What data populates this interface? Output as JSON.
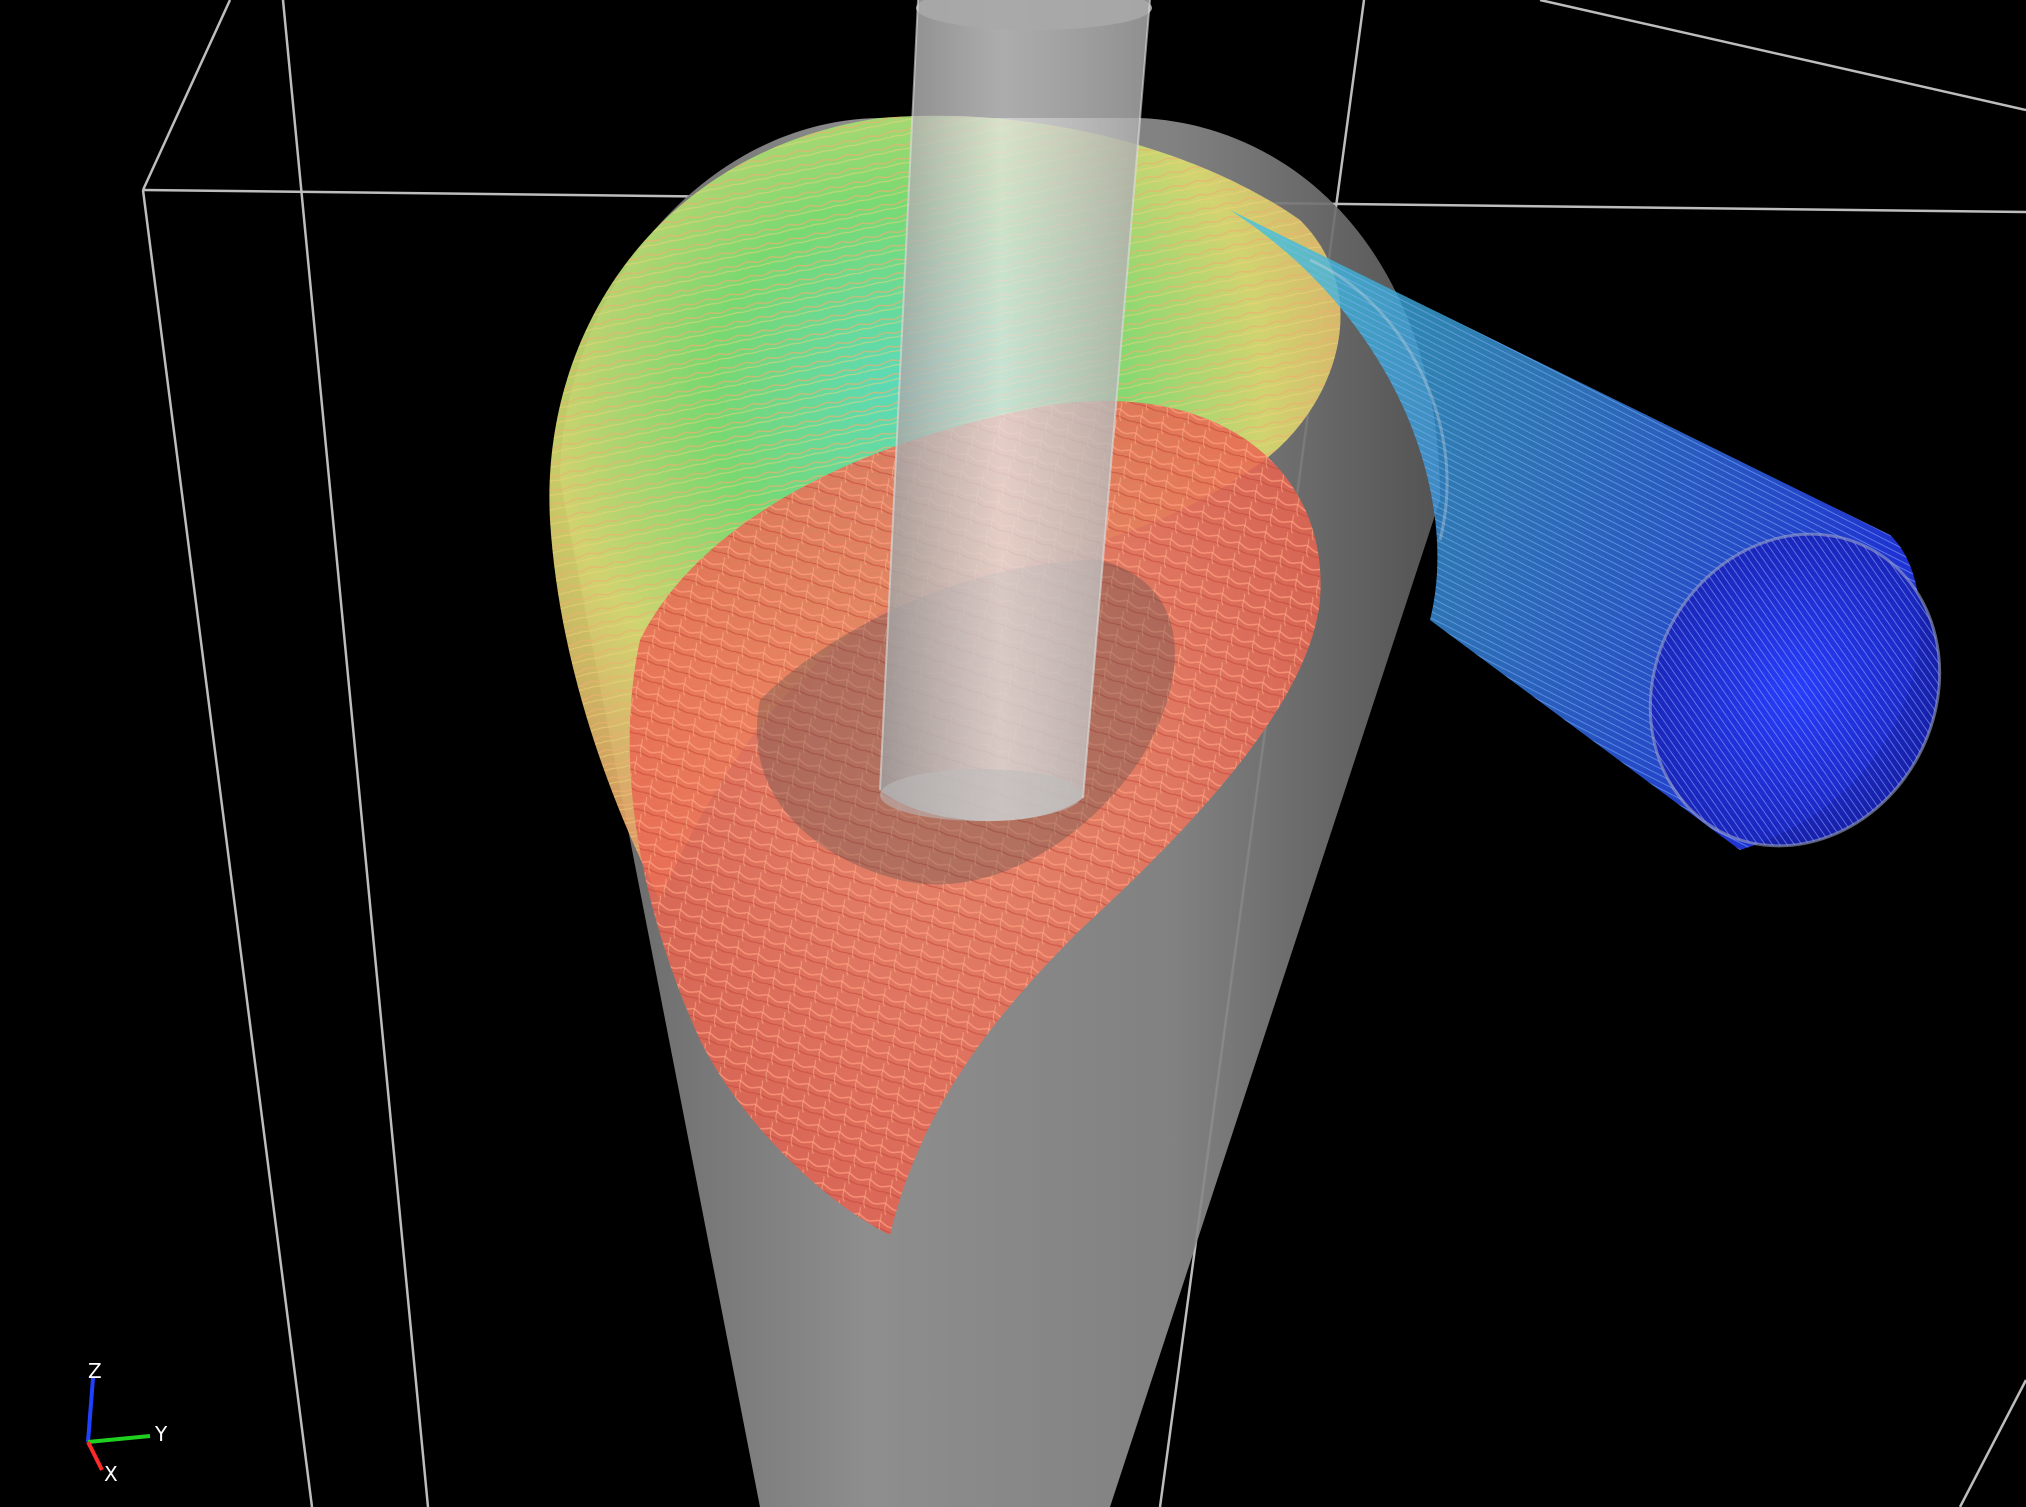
{
  "viewport": {
    "background": "#000000"
  },
  "scene": {
    "description_colors": {
      "bounding_box": "#bdbdbd",
      "vessel_body": "#8a8a8a",
      "vortex_finder": "#cfcfcf",
      "inlet_pipe": "#9fb4c8"
    },
    "streamline_colormap": [
      "#2233ff",
      "#2aa8ff",
      "#33e0d0",
      "#66ee66",
      "#d8ee66",
      "#f5d070",
      "#f08a6a",
      "#e8604e"
    ]
  },
  "axes_triad": {
    "z_label": "Z",
    "y_label": "Y",
    "x_label": "X",
    "z_color": "#2040ff",
    "y_color": "#20d020",
    "x_color": "#ff2a2a"
  }
}
